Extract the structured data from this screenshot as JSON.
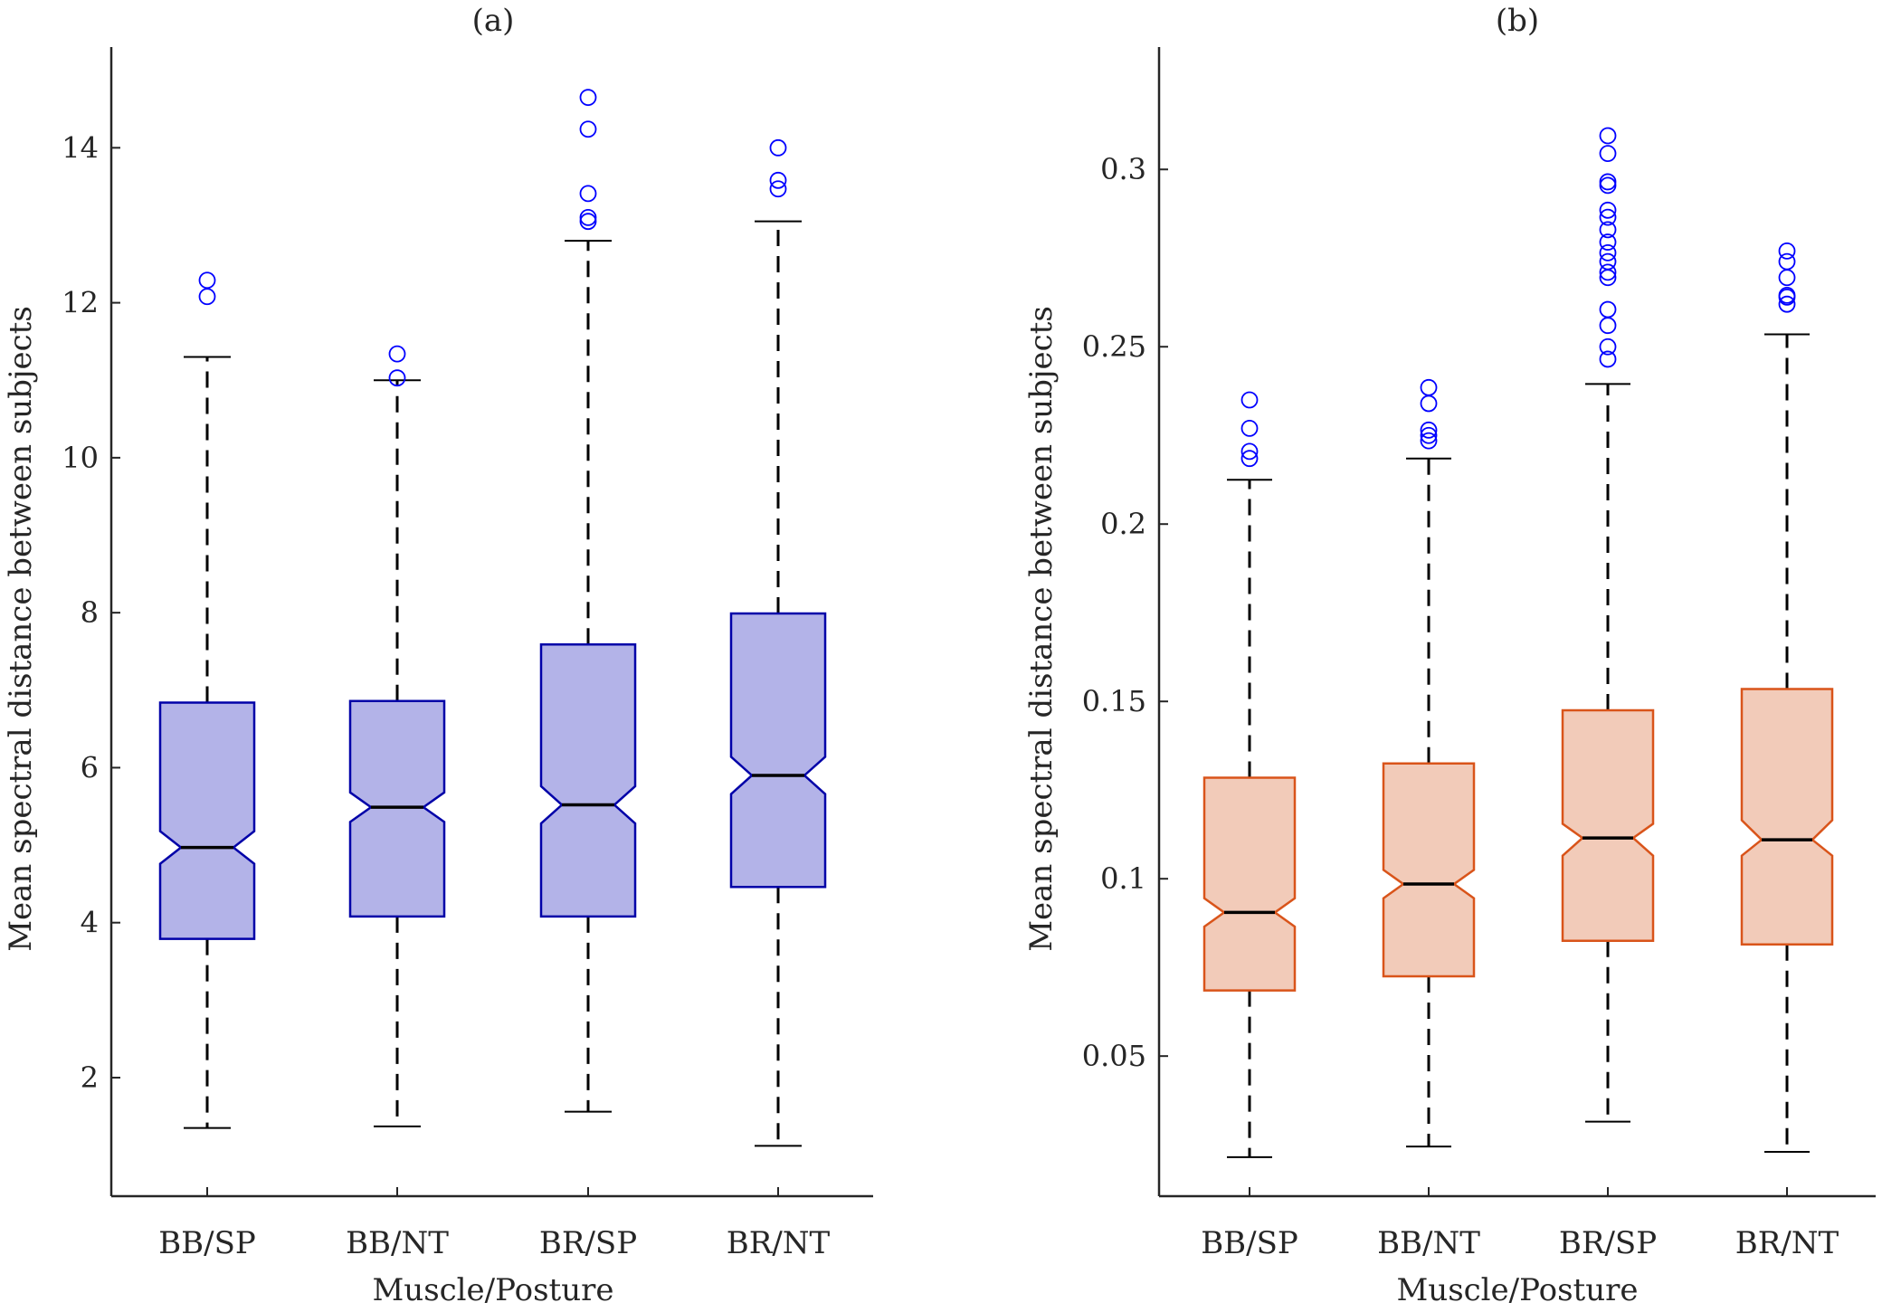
{
  "colors": {
    "axis": "#262626",
    "panel_a_edge": "#0000a8",
    "panel_a_fill": "#b3b3e8",
    "panel_b_edge": "#d9541a",
    "panel_b_fill": "#f2cbb9",
    "outlier": "#0000ff",
    "median": "#000000",
    "whisker": "#000000"
  },
  "chart_data": [
    {
      "type": "box",
      "notched": true,
      "title": "(a)",
      "xlabel": "Muscle/Posture",
      "ylabel": "Mean spectral distance between subjects",
      "categories": [
        "BB/SP",
        "BB/NT",
        "BR/SP",
        "BR/NT"
      ],
      "ylim": [
        0.47,
        15.3
      ],
      "yticks": [
        2,
        4,
        6,
        8,
        10,
        12,
        14
      ],
      "ytick_labels": [
        "2",
        "4",
        "6",
        "8",
        "10",
        "12",
        "14"
      ],
      "boxes": [
        {
          "category": "BB/SP",
          "whisker_low": 1.35,
          "q1": 3.79,
          "median": 4.97,
          "q3": 6.84,
          "whisker_high": 11.3,
          "notch_low": 4.76,
          "notch_high": 5.18,
          "outliers": [
            12.08,
            12.29
          ]
        },
        {
          "category": "BB/NT",
          "whisker_low": 1.37,
          "q1": 4.08,
          "median": 5.49,
          "q3": 6.86,
          "whisker_high": 11.0,
          "notch_low": 5.3,
          "notch_high": 5.68,
          "outliers": [
            11.03,
            11.34
          ]
        },
        {
          "category": "BR/SP",
          "whisker_low": 1.56,
          "q1": 4.08,
          "median": 5.52,
          "q3": 7.59,
          "whisker_high": 12.8,
          "notch_low": 5.28,
          "notch_high": 5.76,
          "outliers": [
            13.05,
            13.1,
            13.41,
            14.24,
            14.65
          ]
        },
        {
          "category": "BR/NT",
          "whisker_low": 1.12,
          "q1": 4.46,
          "median": 5.9,
          "q3": 7.99,
          "whisker_high": 13.05,
          "notch_low": 5.66,
          "notch_high": 6.14,
          "outliers": [
            13.47,
            13.58,
            14.0
          ]
        }
      ]
    },
    {
      "type": "box",
      "notched": true,
      "title": "(b)",
      "xlabel": "Muscle/Posture",
      "ylabel": "Mean spectral distance between subjects",
      "categories": [
        "BB/SP",
        "BB/NT",
        "BR/SP",
        "BR/NT"
      ],
      "ylim": [
        0.0105,
        0.3345
      ],
      "yticks": [
        0.05,
        0.1,
        0.15,
        0.2,
        0.25,
        0.3
      ],
      "ytick_labels": [
        "0.05",
        "0.1",
        "0.15",
        "0.2",
        "0.25",
        "0.3"
      ],
      "boxes": [
        {
          "category": "BB/SP",
          "whisker_low": 0.0215,
          "q1": 0.0685,
          "median": 0.0905,
          "q3": 0.1285,
          "whisker_high": 0.2125,
          "notch_low": 0.0865,
          "notch_high": 0.0945,
          "outliers": [
            0.2185,
            0.2205,
            0.227,
            0.235
          ]
        },
        {
          "category": "BB/NT",
          "whisker_low": 0.0245,
          "q1": 0.0725,
          "median": 0.0985,
          "q3": 0.1325,
          "whisker_high": 0.2185,
          "notch_low": 0.0945,
          "notch_high": 0.1025,
          "outliers": [
            0.2235,
            0.225,
            0.2265,
            0.234,
            0.2385
          ]
        },
        {
          "category": "BR/SP",
          "whisker_low": 0.0315,
          "q1": 0.0825,
          "median": 0.1115,
          "q3": 0.1475,
          "whisker_high": 0.2395,
          "notch_low": 0.1065,
          "notch_high": 0.1155,
          "outliers": [
            0.2465,
            0.25,
            0.256,
            0.2605,
            0.2695,
            0.271,
            0.274,
            0.2765,
            0.2795,
            0.283,
            0.2865,
            0.2885,
            0.2955,
            0.2965,
            0.3045,
            0.3095
          ]
        },
        {
          "category": "BR/NT",
          "whisker_low": 0.023,
          "q1": 0.0815,
          "median": 0.111,
          "q3": 0.1535,
          "whisker_high": 0.2535,
          "notch_low": 0.1065,
          "notch_high": 0.1165,
          "outliers": [
            0.262,
            0.264,
            0.2645,
            0.2695,
            0.274,
            0.277
          ]
        }
      ]
    }
  ]
}
